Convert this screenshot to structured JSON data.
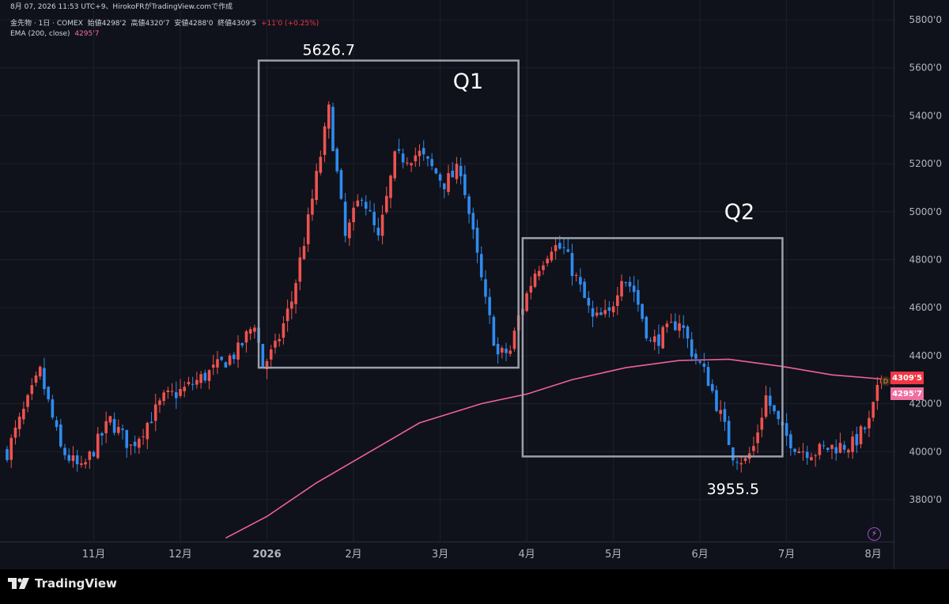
{
  "header": {
    "line1_prefix": "8月 07, 2026 11:53 UTC+9、HirokoFRがTradingView.comで作成",
    "symbol": "金先物 · 1日 · COMEX",
    "open": "始値4298'2",
    "high": "高値4320'7",
    "low": "安値4288'0",
    "close": "終値4309'5",
    "change": "+11'0 (+0.25%)",
    "ema_label": "EMA (200, close)",
    "ema_value": "4295'7"
  },
  "price_tags": {
    "last": "4309'5",
    "ema": "4295'7",
    "badge": "D"
  },
  "footer": {
    "brand": "TradingView"
  },
  "colors": {
    "up": "#ef5350",
    "down": "#2f8bef",
    "ema": "#f0609c",
    "box": "#9aa0aa",
    "bg": "#0f121a"
  },
  "chart_data": {
    "type": "candlestick",
    "y_axis": {
      "ticks": [
        "5800'0",
        "5600'0",
        "5400'0",
        "5200'0",
        "5000'0",
        "4800'0",
        "4600'0",
        "4400'0",
        "4200'0",
        "4000'0",
        "3800'0"
      ],
      "tick_values": [
        5800,
        5600,
        5400,
        5200,
        5000,
        4800,
        4600,
        4400,
        4200,
        4000,
        3800
      ],
      "range": [
        3640,
        5850
      ]
    },
    "x_axis": {
      "labels": [
        "11月",
        "12月",
        "2026",
        "2月",
        "3月",
        "4月",
        "5月",
        "6月",
        "7月",
        "8月"
      ],
      "label_day_index": [
        21,
        42,
        63,
        84,
        105,
        126,
        147,
        168,
        189,
        210
      ]
    },
    "annotations": [
      {
        "text": "5626.7",
        "day": 78,
        "price": 5626.7
      },
      {
        "text": "3955.5",
        "day": 176,
        "price": 3955.5
      },
      {
        "text": "Q1",
        "day": 64,
        "price": 5700
      },
      {
        "text": "Q2",
        "day": 127,
        "price": 5000
      }
    ],
    "boxes": [
      {
        "name": "Q1",
        "day_start": 61,
        "day_end": 124,
        "price_top": 5630,
        "price_bottom": 4350
      },
      {
        "name": "Q2",
        "day_start": 125,
        "day_end": 188,
        "price_top": 4890,
        "price_bottom": 3980
      }
    ],
    "ema": {
      "name": "EMA (200, close)",
      "points": [
        [
          53,
          3640
        ],
        [
          63,
          3730
        ],
        [
          75,
          3870
        ],
        [
          88,
          4000
        ],
        [
          100,
          4120
        ],
        [
          115,
          4200
        ],
        [
          126,
          4240
        ],
        [
          137,
          4300
        ],
        [
          150,
          4350
        ],
        [
          163,
          4380
        ],
        [
          175,
          4385
        ],
        [
          188,
          4355
        ],
        [
          200,
          4320
        ],
        [
          214,
          4300
        ]
      ]
    },
    "close_path": [
      [
        0,
        4000
      ],
      [
        8,
        4330
      ],
      [
        13,
        4010
      ],
      [
        18,
        3920
      ],
      [
        25,
        4130
      ],
      [
        30,
        4020
      ],
      [
        38,
        4220
      ],
      [
        43,
        4260
      ],
      [
        50,
        4340
      ],
      [
        56,
        4420
      ],
      [
        60,
        4540
      ],
      [
        62,
        4360
      ],
      [
        65,
        4430
      ],
      [
        69,
        4630
      ],
      [
        73,
        4960
      ],
      [
        78,
        5420
      ],
      [
        82,
        4890
      ],
      [
        86,
        5080
      ],
      [
        90,
        4880
      ],
      [
        94,
        5220
      ],
      [
        100,
        5240
      ],
      [
        106,
        5120
      ],
      [
        110,
        5180
      ],
      [
        116,
        4620
      ],
      [
        119,
        4400
      ],
      [
        122,
        4420
      ],
      [
        124,
        4560
      ],
      [
        128,
        4750
      ],
      [
        132,
        4860
      ],
      [
        135,
        4840
      ],
      [
        138,
        4720
      ],
      [
        142,
        4550
      ],
      [
        146,
        4570
      ],
      [
        149,
        4740
      ],
      [
        152,
        4670
      ],
      [
        156,
        4450
      ],
      [
        160,
        4500
      ],
      [
        163,
        4550
      ],
      [
        166,
        4420
      ],
      [
        170,
        4300
      ],
      [
        173,
        4150
      ],
      [
        176,
        3990
      ],
      [
        179,
        3960
      ],
      [
        181,
        4020
      ],
      [
        184,
        4230
      ],
      [
        188,
        4080
      ],
      [
        192,
        4010
      ],
      [
        196,
        4000
      ],
      [
        200,
        4020
      ],
      [
        205,
        4030
      ],
      [
        209,
        4120
      ],
      [
        212,
        4309
      ]
    ]
  }
}
